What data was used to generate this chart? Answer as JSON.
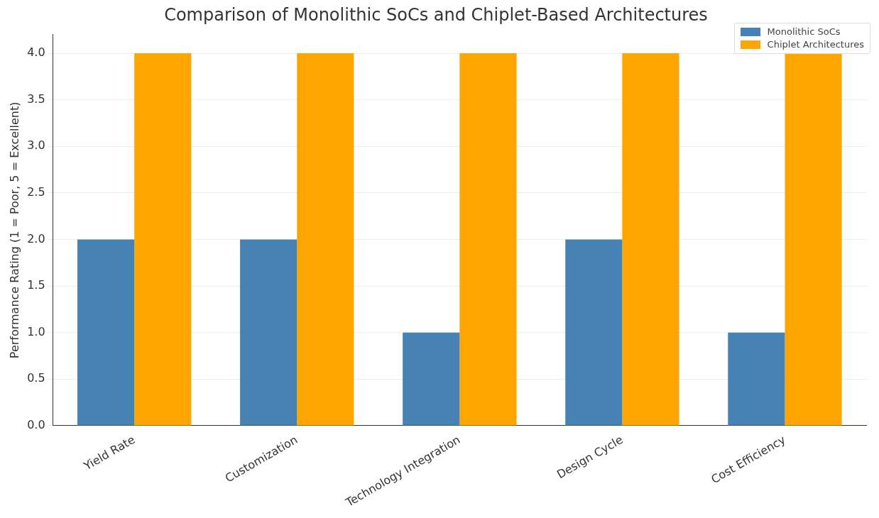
{
  "chart_data": {
    "type": "bar",
    "title": "Comparison of Monolithic SoCs and Chiplet-Based Architectures",
    "ylabel": "Performance Rating (1 = Poor, 5 = Excellent)",
    "categories": [
      "Yield Rate",
      "Customization",
      "Technology Integration",
      "Design Cycle",
      "Cost Efficiency"
    ],
    "series": [
      {
        "name": "Monolithic SoCs",
        "color": "#4682b4",
        "values": [
          2,
          2,
          1,
          2,
          1
        ]
      },
      {
        "name": "Chiplet Architectures",
        "color": "#ffa500",
        "values": [
          4,
          4,
          4,
          4,
          4
        ]
      }
    ],
    "ylim": [
      0,
      4.2
    ],
    "yticks": [
      {
        "value": 0,
        "label": "0.0"
      },
      0.5,
      {
        "value": 1,
        "label": "1.0"
      },
      1.5,
      {
        "value": 2,
        "label": "2.0"
      },
      2.5,
      {
        "value": 3,
        "label": "3.0"
      },
      3.5,
      {
        "value": 4,
        "label": "4.0"
      }
    ],
    "grid": "y",
    "legend": "top right"
  }
}
